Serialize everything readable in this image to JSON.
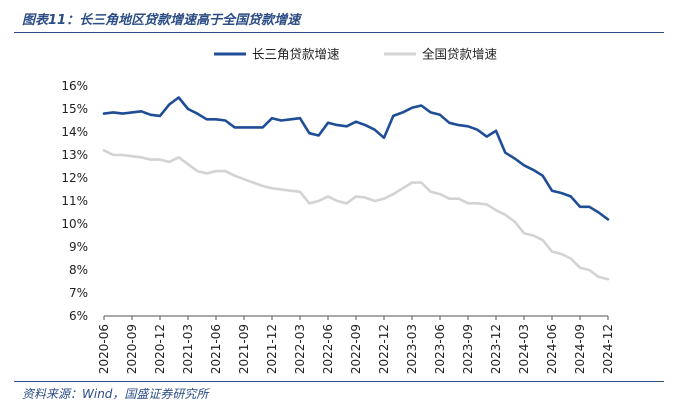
{
  "header": {
    "title": "图表11：长三角地区贷款增速高于全国贷款增速"
  },
  "footer": {
    "source": "资料来源：Wind，国盛证券研究所"
  },
  "colors": {
    "accent": "#2c4d86",
    "series_primary": "#1f4e96",
    "series_secondary": "#d3d3d3"
  },
  "chart_data": {
    "type": "line",
    "title": "",
    "xlabel": "",
    "ylabel": "",
    "ylim": [
      6,
      16
    ],
    "y_ticks": [
      "6%",
      "7%",
      "8%",
      "9%",
      "10%",
      "11%",
      "12%",
      "13%",
      "14%",
      "15%",
      "16%"
    ],
    "grid": false,
    "legend_position": "top",
    "x": [
      "2020-06",
      "2020-07",
      "2020-08",
      "2020-09",
      "2020-10",
      "2020-11",
      "2020-12",
      "2021-01",
      "2021-02",
      "2021-03",
      "2021-04",
      "2021-05",
      "2021-06",
      "2021-07",
      "2021-08",
      "2021-09",
      "2021-10",
      "2021-11",
      "2021-12",
      "2022-01",
      "2022-02",
      "2022-03",
      "2022-04",
      "2022-05",
      "2022-06",
      "2022-07",
      "2022-08",
      "2022-09",
      "2022-10",
      "2022-11",
      "2022-12",
      "2023-01",
      "2023-02",
      "2023-03",
      "2023-04",
      "2023-05",
      "2023-06",
      "2023-07",
      "2023-08",
      "2023-09",
      "2023-10",
      "2023-11",
      "2023-12",
      "2024-01",
      "2024-02",
      "2024-03",
      "2024-04",
      "2024-05",
      "2024-06",
      "2024-07",
      "2024-08",
      "2024-09",
      "2024-10",
      "2024-11",
      "2024-12"
    ],
    "x_tick_labels": [
      "2020-06",
      "2020-09",
      "2020-12",
      "2021-03",
      "2021-06",
      "2021-09",
      "2021-12",
      "2022-03",
      "2022-06",
      "2022-09",
      "2022-12",
      "2023-03",
      "2023-06",
      "2023-09",
      "2023-12",
      "2024-03",
      "2024-06",
      "2024-09",
      "2024-12"
    ],
    "series": [
      {
        "name": "长三角贷款增速",
        "values": [
          14.8,
          14.85,
          14.8,
          14.85,
          14.9,
          14.75,
          14.7,
          15.2,
          15.5,
          15.0,
          14.8,
          14.55,
          14.55,
          14.5,
          14.2,
          14.2,
          14.2,
          14.2,
          14.6,
          14.5,
          14.55,
          14.6,
          13.95,
          13.85,
          14.4,
          14.3,
          14.25,
          14.45,
          14.3,
          14.1,
          13.75,
          14.7,
          14.85,
          15.05,
          15.15,
          14.85,
          14.75,
          14.4,
          14.3,
          14.25,
          14.1,
          13.8,
          14.05,
          13.1,
          12.85,
          12.55,
          12.35,
          12.1,
          11.45,
          11.35,
          11.2,
          10.75,
          10.75,
          10.5,
          10.2
        ]
      },
      {
        "name": "全国贷款增速",
        "values": [
          13.2,
          13.0,
          13.0,
          12.95,
          12.9,
          12.8,
          12.8,
          12.7,
          12.9,
          12.6,
          12.3,
          12.2,
          12.3,
          12.3,
          12.1,
          11.95,
          11.8,
          11.65,
          11.55,
          11.5,
          11.45,
          11.4,
          10.9,
          11.0,
          11.2,
          11.0,
          10.9,
          11.2,
          11.15,
          11.0,
          11.1,
          11.3,
          11.55,
          11.8,
          11.8,
          11.4,
          11.3,
          11.1,
          11.1,
          10.9,
          10.9,
          10.85,
          10.6,
          10.4,
          10.1,
          9.6,
          9.5,
          9.3,
          8.8,
          8.7,
          8.5,
          8.1,
          8.0,
          7.7,
          7.6
        ]
      }
    ]
  }
}
